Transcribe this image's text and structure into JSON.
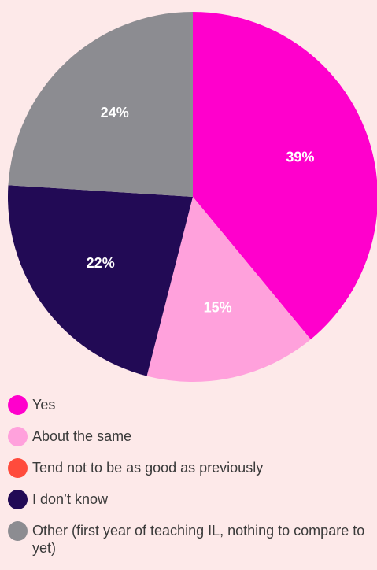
{
  "chart_data": {
    "type": "pie",
    "slices": [
      {
        "label": "Yes",
        "value": 39,
        "display": "39%",
        "color": "#ff00cc"
      },
      {
        "label": "About the same",
        "value": 15,
        "display": "15%",
        "color": "#ffa1dc"
      },
      {
        "label": "Tend not to be as good as previously",
        "value": 0,
        "display": "",
        "color": "#ff4b3c"
      },
      {
        "label": "I don’t know",
        "value": 22,
        "display": "22%",
        "color": "#220a55"
      },
      {
        "label": "Other (first year of teaching IL, nothing to compare to yet)",
        "value": 24,
        "display": "24%",
        "color": "#8c8c91"
      }
    ],
    "legend_position": "bottom"
  }
}
